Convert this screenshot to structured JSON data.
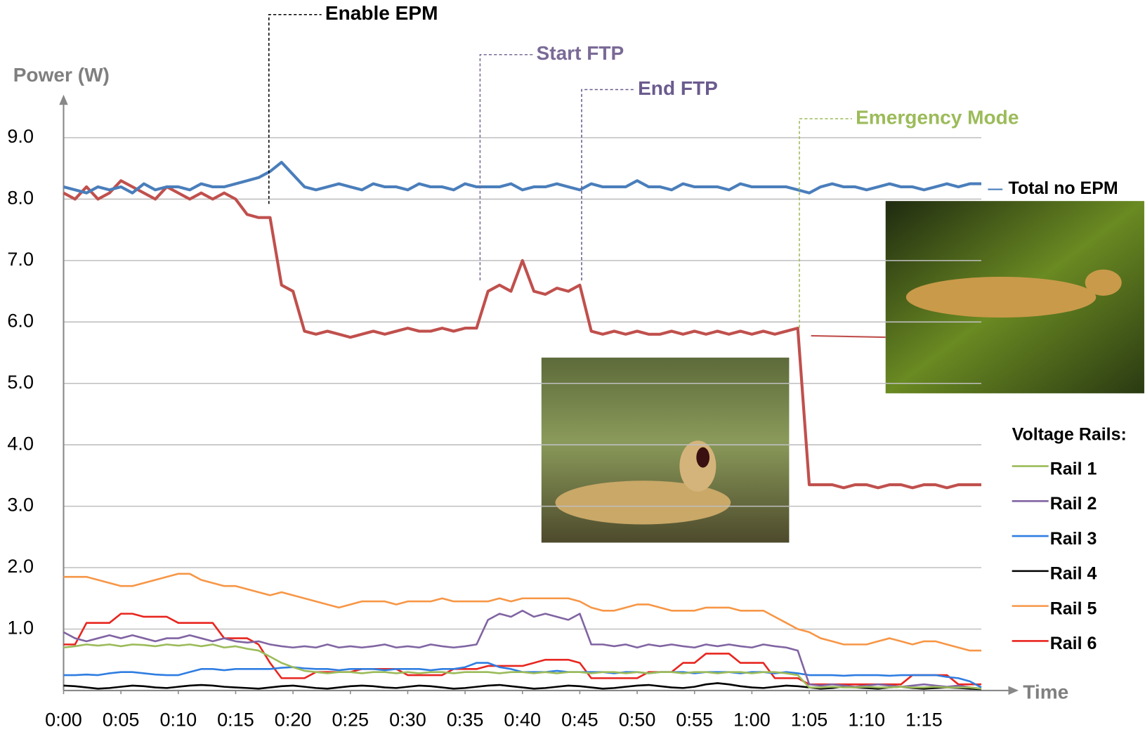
{
  "chart_data": {
    "type": "line",
    "y_label": "Power (W)",
    "x_label": "Time",
    "legend_title": "Voltage Rails:",
    "annotations": [
      {
        "text": "Enable EPM",
        "color": "#000000"
      },
      {
        "text": "Start FTP",
        "color": "#7a6a96"
      },
      {
        "text": "End FTP",
        "color": "#6b5b8e"
      },
      {
        "text": "Emergency Mode",
        "color": "#9bbb59"
      }
    ],
    "grid": true,
    "xlim": [
      0,
      80
    ],
    "ylim": [
      0,
      9.7
    ],
    "xticks": [
      {
        "value": 0,
        "label": "0:00"
      },
      {
        "value": 5,
        "label": "0:05"
      },
      {
        "value": 10,
        "label": "0:10"
      },
      {
        "value": 15,
        "label": "0:15"
      },
      {
        "value": 20,
        "label": "0:20"
      },
      {
        "value": 25,
        "label": "0:25"
      },
      {
        "value": 30,
        "label": "0:30"
      },
      {
        "value": 35,
        "label": "0:35"
      },
      {
        "value": 40,
        "label": "0:40"
      },
      {
        "value": 45,
        "label": "0:45"
      },
      {
        "value": 50,
        "label": "0:50"
      },
      {
        "value": 55,
        "label": "0:55"
      },
      {
        "value": 60,
        "label": "1:00"
      },
      {
        "value": 65,
        "label": "1:05"
      },
      {
        "value": 70,
        "label": "1:10"
      },
      {
        "value": 75,
        "label": "1:15"
      }
    ],
    "yticks": [
      {
        "value": 1,
        "label": "1.0"
      },
      {
        "value": 2,
        "label": "2.0"
      },
      {
        "value": 3,
        "label": "3.0"
      },
      {
        "value": 4,
        "label": "4.0"
      },
      {
        "value": 5,
        "label": "5.0"
      },
      {
        "value": 6,
        "label": "6.0"
      },
      {
        "value": 7,
        "label": "7.0"
      },
      {
        "value": 8,
        "label": "8.0"
      },
      {
        "value": 9,
        "label": "9.0"
      }
    ],
    "x": [
      0,
      1,
      2,
      3,
      4,
      5,
      6,
      7,
      8,
      9,
      10,
      11,
      12,
      13,
      14,
      15,
      16,
      17,
      18,
      19,
      20,
      21,
      22,
      23,
      24,
      25,
      26,
      27,
      28,
      29,
      30,
      31,
      32,
      33,
      34,
      35,
      36,
      37,
      38,
      39,
      40,
      41,
      42,
      43,
      44,
      45,
      46,
      47,
      48,
      49,
      50,
      51,
      52,
      53,
      54,
      55,
      56,
      57,
      58,
      59,
      60,
      61,
      62,
      63,
      64,
      65,
      66,
      67,
      68,
      69,
      70,
      71,
      72,
      73,
      74,
      75,
      76,
      77,
      78,
      79,
      80
    ],
    "series": [
      {
        "name": "Total no EPM",
        "color": "#4a7ebb",
        "values": [
          8.2,
          8.15,
          8.1,
          8.2,
          8.15,
          8.2,
          8.1,
          8.25,
          8.15,
          8.2,
          8.2,
          8.15,
          8.25,
          8.2,
          8.2,
          8.25,
          8.3,
          8.35,
          8.45,
          8.6,
          8.4,
          8.2,
          8.15,
          8.2,
          8.25,
          8.2,
          8.15,
          8.25,
          8.2,
          8.2,
          8.15,
          8.25,
          8.2,
          8.2,
          8.15,
          8.25,
          8.2,
          8.2,
          8.2,
          8.25,
          8.15,
          8.2,
          8.2,
          8.25,
          8.2,
          8.15,
          8.25,
          8.2,
          8.2,
          8.2,
          8.3,
          8.2,
          8.2,
          8.15,
          8.25,
          8.2,
          8.2,
          8.2,
          8.15,
          8.25,
          8.2,
          8.2,
          8.2,
          8.2,
          8.15,
          8.1,
          8.2,
          8.25,
          8.2,
          8.2,
          8.15,
          8.2,
          8.25,
          8.2,
          8.2,
          8.15,
          8.2,
          8.25,
          8.2,
          8.25,
          8.25
        ]
      },
      {
        "color": "#c0504d",
        "values": [
          8.1,
          8.0,
          8.2,
          8.0,
          8.1,
          8.3,
          8.2,
          8.1,
          8.0,
          8.2,
          8.1,
          8.0,
          8.1,
          8.0,
          8.1,
          8.0,
          7.75,
          7.7,
          7.7,
          6.6,
          6.5,
          5.85,
          5.8,
          5.85,
          5.8,
          5.75,
          5.8,
          5.85,
          5.8,
          5.85,
          5.9,
          5.85,
          5.85,
          5.9,
          5.85,
          5.9,
          5.9,
          6.5,
          6.6,
          6.5,
          7.0,
          6.5,
          6.45,
          6.55,
          6.5,
          6.6,
          5.85,
          5.8,
          5.85,
          5.8,
          5.85,
          5.8,
          5.8,
          5.85,
          5.8,
          5.85,
          5.8,
          5.85,
          5.8,
          5.85,
          5.8,
          5.85,
          5.8,
          5.85,
          5.9,
          3.35,
          3.35,
          3.35,
          3.3,
          3.35,
          3.35,
          3.3,
          3.35,
          3.35,
          3.3,
          3.35,
          3.35,
          3.3,
          3.35,
          3.35,
          3.35
        ]
      },
      {
        "name": "Rail 1",
        "color": "#9bbb59",
        "values": [
          0.7,
          0.72,
          0.75,
          0.73,
          0.75,
          0.72,
          0.75,
          0.74,
          0.72,
          0.75,
          0.73,
          0.75,
          0.72,
          0.75,
          0.7,
          0.72,
          0.68,
          0.65,
          0.55,
          0.45,
          0.38,
          0.32,
          0.3,
          0.28,
          0.3,
          0.3,
          0.28,
          0.3,
          0.3,
          0.28,
          0.3,
          0.28,
          0.3,
          0.3,
          0.28,
          0.3,
          0.3,
          0.3,
          0.28,
          0.3,
          0.3,
          0.28,
          0.3,
          0.28,
          0.3,
          0.3,
          0.28,
          0.3,
          0.3,
          0.28,
          0.3,
          0.28,
          0.3,
          0.3,
          0.28,
          0.3,
          0.3,
          0.28,
          0.3,
          0.3,
          0.28,
          0.3,
          0.3,
          0.28,
          0.25,
          0.05,
          0.05,
          0.06,
          0.05,
          0.05,
          0.06,
          0.05,
          0.05,
          0.06,
          0.05,
          0.05,
          0.06,
          0.05,
          0.05,
          0.05,
          0.03
        ]
      },
      {
        "name": "Rail 2",
        "color": "#8064a2",
        "values": [
          0.95,
          0.85,
          0.8,
          0.85,
          0.9,
          0.85,
          0.9,
          0.85,
          0.8,
          0.85,
          0.85,
          0.9,
          0.85,
          0.8,
          0.85,
          0.8,
          0.78,
          0.8,
          0.75,
          0.72,
          0.7,
          0.72,
          0.7,
          0.75,
          0.7,
          0.72,
          0.7,
          0.72,
          0.75,
          0.7,
          0.72,
          0.7,
          0.75,
          0.72,
          0.7,
          0.72,
          0.75,
          1.15,
          1.25,
          1.2,
          1.3,
          1.2,
          1.25,
          1.2,
          1.15,
          1.25,
          0.75,
          0.75,
          0.72,
          0.75,
          0.7,
          0.75,
          0.72,
          0.75,
          0.72,
          0.7,
          0.75,
          0.72,
          0.75,
          0.72,
          0.7,
          0.75,
          0.72,
          0.7,
          0.65,
          0.1,
          0.08,
          0.1,
          0.08,
          0.06,
          0.08,
          0.1,
          0.08,
          0.06,
          0.08,
          0.1,
          0.08,
          0.06,
          0.08,
          0.05,
          0.03
        ]
      },
      {
        "name": "Rail 3",
        "color": "#2f7de1",
        "values": [
          0.25,
          0.25,
          0.26,
          0.25,
          0.28,
          0.3,
          0.3,
          0.28,
          0.26,
          0.25,
          0.25,
          0.3,
          0.35,
          0.35,
          0.33,
          0.35,
          0.35,
          0.35,
          0.35,
          0.37,
          0.38,
          0.36,
          0.35,
          0.35,
          0.33,
          0.35,
          0.35,
          0.35,
          0.33,
          0.35,
          0.35,
          0.35,
          0.33,
          0.35,
          0.35,
          0.38,
          0.45,
          0.45,
          0.38,
          0.35,
          0.3,
          0.3,
          0.3,
          0.32,
          0.3,
          0.3,
          0.3,
          0.3,
          0.28,
          0.3,
          0.3,
          0.28,
          0.3,
          0.3,
          0.3,
          0.28,
          0.3,
          0.3,
          0.3,
          0.28,
          0.3,
          0.3,
          0.28,
          0.3,
          0.28,
          0.25,
          0.25,
          0.25,
          0.24,
          0.25,
          0.25,
          0.25,
          0.24,
          0.25,
          0.25,
          0.25,
          0.25,
          0.22,
          0.2,
          0.15,
          0.05
        ]
      },
      {
        "name": "Rail 4",
        "color": "#000000",
        "values": [
          0.08,
          0.07,
          0.05,
          0.03,
          0.04,
          0.06,
          0.08,
          0.07,
          0.05,
          0.04,
          0.06,
          0.08,
          0.09,
          0.08,
          0.06,
          0.05,
          0.04,
          0.03,
          0.05,
          0.07,
          0.08,
          0.06,
          0.04,
          0.03,
          0.05,
          0.07,
          0.08,
          0.07,
          0.05,
          0.04,
          0.06,
          0.08,
          0.07,
          0.05,
          0.03,
          0.04,
          0.06,
          0.08,
          0.09,
          0.07,
          0.05,
          0.03,
          0.04,
          0.06,
          0.08,
          0.07,
          0.05,
          0.03,
          0.04,
          0.06,
          0.08,
          0.09,
          0.07,
          0.05,
          0.04,
          0.06,
          0.1,
          0.12,
          0.1,
          0.07,
          0.05,
          0.04,
          0.06,
          0.08,
          0.07,
          0.05,
          0.03,
          0.04,
          0.06,
          0.05,
          0.04,
          0.03,
          0.05,
          0.06,
          0.04,
          0.03,
          0.04,
          0.05,
          0.04,
          0.03,
          0.02
        ]
      },
      {
        "name": "Rail 5",
        "color": "#f79646",
        "values": [
          1.85,
          1.85,
          1.85,
          1.8,
          1.75,
          1.7,
          1.7,
          1.75,
          1.8,
          1.85,
          1.9,
          1.9,
          1.8,
          1.75,
          1.7,
          1.7,
          1.65,
          1.6,
          1.55,
          1.6,
          1.55,
          1.5,
          1.45,
          1.4,
          1.35,
          1.4,
          1.45,
          1.45,
          1.45,
          1.4,
          1.45,
          1.45,
          1.45,
          1.5,
          1.45,
          1.45,
          1.45,
          1.45,
          1.5,
          1.45,
          1.5,
          1.5,
          1.5,
          1.5,
          1.5,
          1.45,
          1.35,
          1.3,
          1.3,
          1.35,
          1.4,
          1.4,
          1.35,
          1.3,
          1.3,
          1.3,
          1.35,
          1.35,
          1.35,
          1.3,
          1.3,
          1.3,
          1.2,
          1.1,
          1.0,
          0.95,
          0.85,
          0.8,
          0.75,
          0.75,
          0.75,
          0.8,
          0.85,
          0.8,
          0.75,
          0.8,
          0.8,
          0.75,
          0.7,
          0.65,
          0.65
        ]
      },
      {
        "name": "Rail 6",
        "color": "#e8251f",
        "values": [
          0.75,
          0.75,
          1.1,
          1.1,
          1.1,
          1.25,
          1.25,
          1.2,
          1.2,
          1.2,
          1.1,
          1.1,
          1.1,
          1.1,
          0.85,
          0.85,
          0.85,
          0.75,
          0.45,
          0.2,
          0.2,
          0.2,
          0.3,
          0.3,
          0.3,
          0.3,
          0.35,
          0.35,
          0.35,
          0.35,
          0.25,
          0.25,
          0.25,
          0.25,
          0.35,
          0.35,
          0.35,
          0.4,
          0.4,
          0.4,
          0.4,
          0.45,
          0.5,
          0.5,
          0.5,
          0.45,
          0.2,
          0.2,
          0.2,
          0.2,
          0.2,
          0.3,
          0.3,
          0.3,
          0.45,
          0.45,
          0.6,
          0.6,
          0.6,
          0.45,
          0.45,
          0.45,
          0.2,
          0.2,
          0.2,
          0.1,
          0.1,
          0.1,
          0.1,
          0.1,
          0.1,
          0.1,
          0.1,
          0.1,
          0.25,
          0.25,
          0.25,
          0.25,
          0.1,
          0.1,
          0.1
        ]
      }
    ]
  }
}
